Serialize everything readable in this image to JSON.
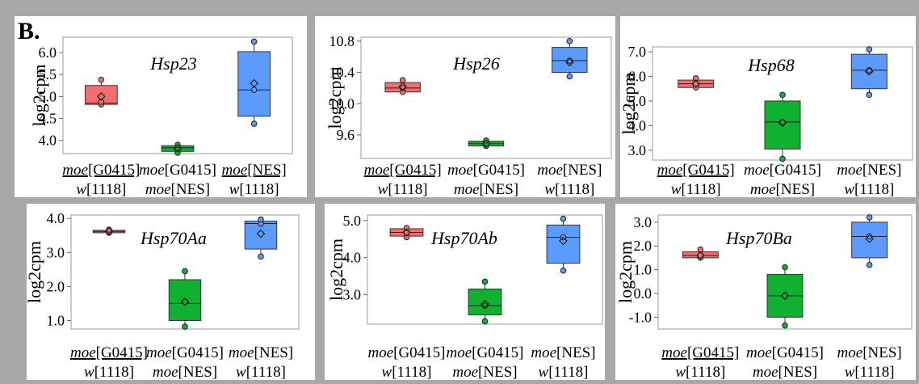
{
  "panel_label": "B.",
  "chart_data": [
    {
      "type": "box",
      "title": "Hsp23",
      "ylabel": "log2cpm",
      "ylim": [
        3.7,
        6.35
      ],
      "yticks": [
        "6.0",
        "5.5",
        "5.0",
        "4.5",
        "4.0"
      ],
      "categories": [
        {
          "line1_italic": "moe",
          "line1_rest": "[G0415]",
          "line1_underline": true,
          "line2_italic": "w",
          "line2_rest": "[1118]"
        },
        {
          "line1_italic": "moe",
          "line1_rest": "[G0415]",
          "line1_underline": false,
          "line2_italic": "moe",
          "line2_rest": "[NES]"
        },
        {
          "line1_italic": "moe",
          "line1_rest": "[NES]",
          "line1_underline": true,
          "line2_italic": "w",
          "line2_rest": "[1118]"
        }
      ],
      "boxes": [
        {
          "min": 4.82,
          "q1": 4.82,
          "median": 4.85,
          "q3": 5.25,
          "max": 5.38,
          "mean": 5.0,
          "points": [
            4.82,
            4.88,
            5.38
          ]
        },
        {
          "min": 3.72,
          "q1": 3.75,
          "median": 3.83,
          "q3": 3.88,
          "max": 3.9,
          "mean": 3.82,
          "points": [
            3.72,
            3.83,
            3.9
          ]
        },
        {
          "min": 4.38,
          "q1": 4.55,
          "median": 5.15,
          "q3": 6.02,
          "max": 6.25,
          "mean": 5.3,
          "points": [
            4.38,
            5.15,
            6.25
          ]
        }
      ],
      "colors": [
        "#f07070",
        "#10b030",
        "#5b9bff"
      ]
    },
    {
      "type": "box",
      "title": "Hsp26",
      "ylabel": "log2cpm",
      "ylim": [
        9.3,
        10.85
      ],
      "yticks": [
        "10.8",
        "10.4",
        "10.0",
        "9.6"
      ],
      "categories": [
        {
          "line1_italic": "moe",
          "line1_rest": "[G0415]",
          "line1_underline": true,
          "line2_italic": "w",
          "line2_rest": "[1118]"
        },
        {
          "line1_italic": "moe",
          "line1_rest": "[G0415]",
          "line1_underline": false,
          "line2_italic": "moe",
          "line2_rest": "[NES]"
        },
        {
          "line1_italic": "moe",
          "line1_rest": "[NES]",
          "line1_underline": false,
          "line2_italic": "w",
          "line2_rest": "[1118]"
        }
      ],
      "boxes": [
        {
          "min": 10.14,
          "q1": 10.15,
          "median": 10.2,
          "q3": 10.27,
          "max": 10.3,
          "mean": 10.22,
          "points": [
            10.15,
            10.2,
            10.3
          ]
        },
        {
          "min": 9.44,
          "q1": 9.46,
          "median": 9.49,
          "q3": 9.52,
          "max": 9.53,
          "mean": 9.49,
          "points": [
            9.46,
            9.49,
            9.53
          ]
        },
        {
          "min": 10.35,
          "q1": 10.4,
          "median": 10.55,
          "q3": 10.72,
          "max": 10.8,
          "mean": 10.53,
          "points": [
            10.35,
            10.55,
            10.8
          ]
        }
      ],
      "colors": [
        "#f07070",
        "#10b030",
        "#5b9bff"
      ]
    },
    {
      "type": "box",
      "title": "Hsp68",
      "ylabel": "log2cpm",
      "ylim": [
        2.6,
        7.2
      ],
      "yticks": [
        "7.0",
        "6.0",
        "5.0",
        "4.0",
        "3.0"
      ],
      "categories": [
        {
          "line1_italic": "moe",
          "line1_rest": "[G0415]",
          "line1_underline": true,
          "line2_italic": "w",
          "line2_rest": "[1118]"
        },
        {
          "line1_italic": "moe",
          "line1_rest": "[G0415]",
          "line1_underline": false,
          "line2_italic": "moe",
          "line2_rest": "[NES]"
        },
        {
          "line1_italic": "moe",
          "line1_rest": "[NES]",
          "line1_underline": false,
          "line2_italic": "w",
          "line2_rest": "[1118]"
        }
      ],
      "boxes": [
        {
          "min": 5.55,
          "q1": 5.55,
          "median": 5.7,
          "q3": 5.85,
          "max": 5.92,
          "mean": 5.7,
          "points": [
            5.55,
            5.7,
            5.92
          ]
        },
        {
          "min": 2.65,
          "q1": 3.05,
          "median": 4.15,
          "q3": 5.0,
          "max": 5.25,
          "mean": 4.12,
          "points": [
            2.65,
            4.15,
            5.25
          ]
        },
        {
          "min": 5.25,
          "q1": 5.5,
          "median": 6.25,
          "q3": 6.9,
          "max": 7.1,
          "mean": 6.2,
          "points": [
            5.25,
            6.25,
            7.1
          ]
        }
      ],
      "colors": [
        "#f07070",
        "#10b030",
        "#5b9bff"
      ]
    },
    {
      "type": "box",
      "title": "Hsp70Aa",
      "ylabel": "log2cpm",
      "ylim": [
        0.75,
        4.1
      ],
      "yticks": [
        "4.0",
        "3.0",
        "2.0",
        "1.0"
      ],
      "categories": [
        {
          "line1_italic": "moe",
          "line1_rest": "[G0415]",
          "line1_underline": true,
          "line2_italic": "w",
          "line2_rest": "[1118]"
        },
        {
          "line1_italic": "moe",
          "line1_rest": "[G0415]",
          "line1_underline": false,
          "line2_italic": "moe",
          "line2_rest": "[NES]"
        },
        {
          "line1_italic": "moe",
          "line1_rest": "[NES]",
          "line1_underline": false,
          "line2_italic": "w",
          "line2_rest": "[1118]"
        }
      ],
      "boxes": [
        {
          "min": 3.57,
          "q1": 3.58,
          "median": 3.62,
          "q3": 3.65,
          "max": 3.67,
          "mean": 3.62,
          "points": [
            3.58,
            3.62,
            3.67
          ]
        },
        {
          "min": 0.82,
          "q1": 1.0,
          "median": 1.5,
          "q3": 2.2,
          "max": 2.45,
          "mean": 1.55,
          "points": [
            0.82,
            1.55,
            2.45
          ]
        },
        {
          "min": 2.88,
          "q1": 3.1,
          "median": 3.85,
          "q3": 3.92,
          "max": 3.97,
          "mean": 3.55,
          "points": [
            2.88,
            3.85,
            3.97
          ]
        }
      ],
      "colors": [
        "#f07070",
        "#10b030",
        "#5b9bff"
      ]
    },
    {
      "type": "box",
      "title": "Hsp70Ab",
      "ylabel": "log2cpm",
      "ylim": [
        2.2,
        5.15
      ],
      "yticks": [
        "5.0",
        "4.0",
        "3.0"
      ],
      "categories": [
        {
          "line1_italic": "moe",
          "line1_rest": "[G0415]",
          "line1_underline": false,
          "line2_italic": "w",
          "line2_rest": "[1118]"
        },
        {
          "line1_italic": "moe",
          "line1_rest": "[G0415]",
          "line1_underline": false,
          "line2_italic": "moe",
          "line2_rest": "[NES]"
        },
        {
          "line1_italic": "moe",
          "line1_rest": "[NES]",
          "line1_underline": false,
          "line2_italic": "w",
          "line2_rest": "[1118]"
        }
      ],
      "boxes": [
        {
          "min": 4.55,
          "q1": 4.58,
          "median": 4.68,
          "q3": 4.78,
          "max": 4.8,
          "mean": 4.68,
          "points": [
            4.55,
            4.68,
            4.8
          ]
        },
        {
          "min": 2.28,
          "q1": 2.45,
          "median": 2.7,
          "q3": 3.15,
          "max": 3.35,
          "mean": 2.75,
          "points": [
            2.28,
            2.7,
            3.35
          ]
        },
        {
          "min": 3.65,
          "q1": 3.85,
          "median": 4.55,
          "q3": 4.88,
          "max": 5.05,
          "mean": 4.45,
          "points": [
            3.65,
            4.55,
            5.05
          ]
        }
      ],
      "colors": [
        "#f07070",
        "#10b030",
        "#5b9bff"
      ]
    },
    {
      "type": "box",
      "title": "Hsp70Ba",
      "ylabel": "log2cpm",
      "ylim": [
        -1.5,
        3.3
      ],
      "yticks": [
        "3.0",
        "2.0",
        "1.0",
        "0.0",
        "-1.0"
      ],
      "categories": [
        {
          "line1_italic": "moe",
          "line1_rest": "[G0415]",
          "line1_underline": true,
          "line2_italic": "w",
          "line2_rest": "[1118]"
        },
        {
          "line1_italic": "moe",
          "line1_rest": "[G0415]",
          "line1_underline": false,
          "line2_italic": "moe",
          "line2_rest": "[NES]"
        },
        {
          "line1_italic": "moe",
          "line1_rest": "[NES]",
          "line1_underline": false,
          "line2_italic": "w",
          "line2_rest": "[1118]"
        }
      ],
      "boxes": [
        {
          "min": 1.5,
          "q1": 1.5,
          "median": 1.6,
          "q3": 1.75,
          "max": 1.85,
          "mean": 1.6,
          "points": [
            1.5,
            1.6,
            1.85
          ]
        },
        {
          "min": -1.35,
          "q1": -1.0,
          "median": -0.1,
          "q3": 0.8,
          "max": 1.1,
          "mean": -0.1,
          "points": [
            -1.35,
            -0.1,
            1.1
          ]
        },
        {
          "min": 1.2,
          "q1": 1.5,
          "median": 2.4,
          "q3": 3.0,
          "max": 3.2,
          "mean": 2.3,
          "points": [
            1.2,
            2.4,
            3.2
          ]
        }
      ],
      "colors": [
        "#f07070",
        "#10b030",
        "#5b9bff"
      ]
    }
  ]
}
